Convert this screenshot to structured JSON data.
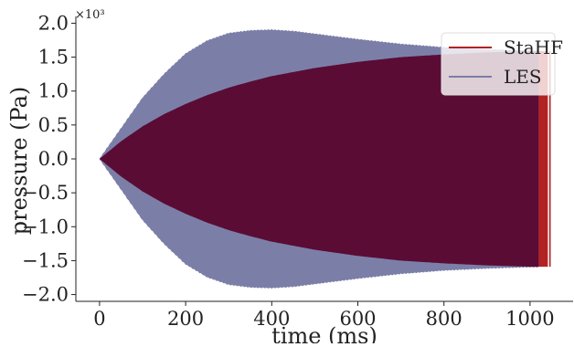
{
  "chart_data": {
    "type": "area",
    "xlabel": "time (ms)",
    "ylabel": "pressure (Pa)",
    "y_multiplier_label": "×10³",
    "xlim": [
      -55,
      1100
    ],
    "ylim": [
      -2.1,
      2.1
    ],
    "x_ticks": [
      0,
      200,
      400,
      600,
      800,
      1000
    ],
    "x_tick_labels": [
      "0",
      "200",
      "400",
      "600",
      "800",
      "1000"
    ],
    "y_ticks": [
      2.0,
      1.5,
      1.0,
      0.5,
      0.0,
      -0.5,
      -1.0,
      -1.5,
      -2.0
    ],
    "y_tick_labels": [
      "2.0",
      "1.5",
      "1.0",
      "0.5",
      "0.0",
      "−0.5",
      "−1.0",
      "−1.5",
      "−2.0"
    ],
    "grid": false,
    "legend_position": "top-right",
    "series": [
      {
        "name": "StaHF",
        "color": "#b22222",
        "envelope_x": [
          0,
          50,
          100,
          150,
          200,
          250,
          300,
          350,
          400,
          500,
          600,
          700,
          800,
          900,
          1000,
          1050
        ],
        "envelope_upper": [
          0.0,
          0.26,
          0.48,
          0.66,
          0.81,
          0.94,
          1.05,
          1.14,
          1.22,
          1.34,
          1.43,
          1.5,
          1.54,
          1.57,
          1.59,
          1.59
        ],
        "envelope_lower": [
          0.0,
          -0.26,
          -0.48,
          -0.66,
          -0.81,
          -0.94,
          -1.05,
          -1.14,
          -1.22,
          -1.34,
          -1.43,
          -1.5,
          -1.54,
          -1.57,
          -1.59,
          -1.59
        ]
      },
      {
        "name": "LES",
        "color": "#7b7fa8",
        "envelope_x": [
          0,
          50,
          100,
          150,
          200,
          250,
          300,
          350,
          400,
          450,
          500,
          600,
          700,
          800,
          900,
          1000,
          1020
        ],
        "envelope_upper": [
          0.0,
          0.45,
          0.9,
          1.25,
          1.55,
          1.74,
          1.85,
          1.89,
          1.9,
          1.88,
          1.84,
          1.76,
          1.69,
          1.64,
          1.61,
          1.59,
          1.59
        ],
        "envelope_lower": [
          0.0,
          -0.45,
          -0.9,
          -1.25,
          -1.55,
          -1.74,
          -1.85,
          -1.89,
          -1.9,
          -1.88,
          -1.84,
          -1.76,
          -1.69,
          -1.64,
          -1.61,
          -1.59,
          -1.59
        ]
      }
    ],
    "overlap_color": "#5a0c35"
  }
}
